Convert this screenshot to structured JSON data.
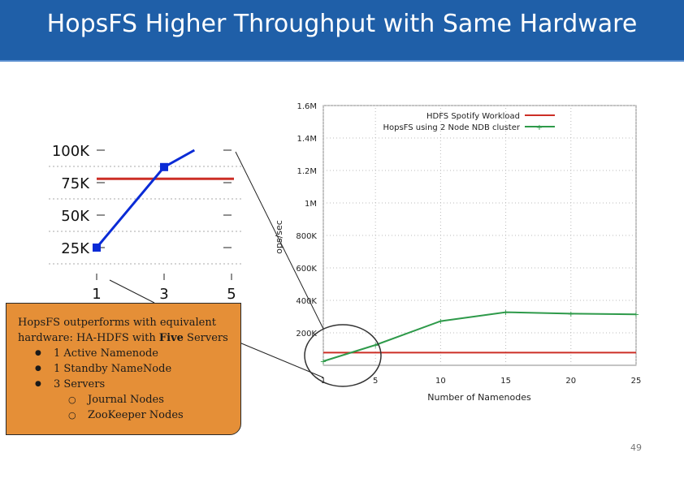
{
  "slide": {
    "title": "HopsFS Higher Throughput with Same Hardware",
    "page_number": "49"
  },
  "callout": {
    "lead_prefix": "HopsFS outperforms with equivalent hardware: HA-HDFS with ",
    "lead_bold": "Five",
    "lead_suffix": " Servers",
    "items": [
      {
        "label": "1 Active Namenode"
      },
      {
        "label": "1 Standby NameNode"
      },
      {
        "label": "3 Servers",
        "children": [
          "Journal Nodes",
          "ZooKeeper Nodes"
        ]
      }
    ]
  },
  "colors": {
    "title_bar": "#1f5fa8",
    "hdfs_line": "#cc2e26",
    "hopsfs_line": "#2e9a4a",
    "zoom_line": "#0a2bd6",
    "callout_fill": "#e58f37"
  },
  "chart_data": [
    {
      "type": "line",
      "xlabel": "Number of Namenodes",
      "ylabel": "ops/sec",
      "x": [
        1,
        5,
        10,
        15,
        20,
        25
      ],
      "xticks": [
        "1",
        "5",
        "10",
        "15",
        "20",
        "25"
      ],
      "ylim": [
        0,
        1600000
      ],
      "yticks": [
        200000,
        400000,
        600000,
        800000,
        1000000,
        1200000,
        1400000,
        1600000
      ],
      "ytick_labels": [
        "200K",
        "400K",
        "600K",
        "800K",
        "1M",
        "1.2M",
        "1.4M",
        "1.6M"
      ],
      "grid": true,
      "legend_position": "top-right",
      "series": [
        {
          "name": "HDFS Spotify Workload",
          "values": [
            78000,
            78000,
            78000,
            78000,
            78000,
            78000
          ]
        },
        {
          "name": "HopsFS using 2 Node NDB cluster",
          "values": [
            25000,
            125000,
            272000,
            327000,
            318000,
            314000
          ]
        }
      ]
    },
    {
      "type": "line",
      "x": [
        1,
        3,
        5
      ],
      "xticks": [
        "1",
        "3",
        "5"
      ],
      "ylim": [
        0,
        100000
      ],
      "yticks": [
        25000,
        50000,
        75000,
        100000
      ],
      "ytick_labels": [
        "25K",
        "50K",
        "75K",
        "100K"
      ],
      "reference_value": 78000,
      "series": [
        {
          "x": [
            1,
            3,
            3.9
          ],
          "values": [
            25000,
            87000,
            100000
          ]
        }
      ]
    }
  ]
}
